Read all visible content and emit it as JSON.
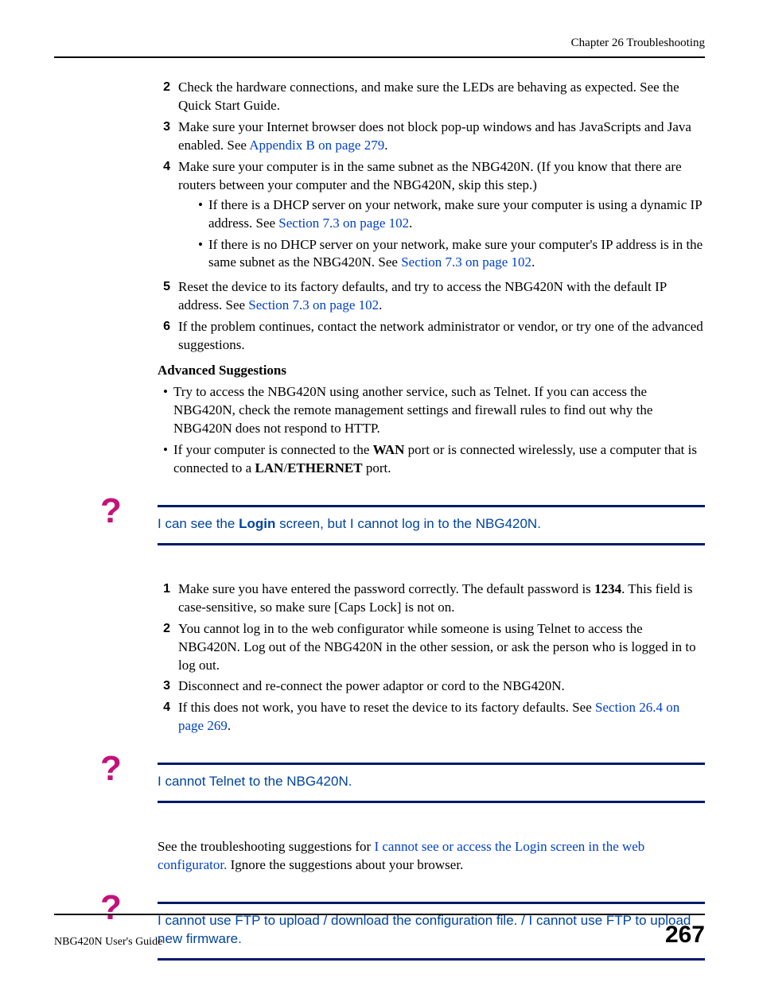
{
  "header": {
    "chapter": "Chapter 26 Troubleshooting"
  },
  "steps1": {
    "s2": "Check the hardware connections, and make sure the LEDs are behaving as expected. See the Quick Start Guide.",
    "s3a": "Make sure your Internet browser does not block pop-up windows and has JavaScripts and Java enabled. See ",
    "s3link": "Appendix B on page 279",
    "s3b": ".",
    "s4": "Make sure your computer is in the same subnet as the NBG420N. (If you know that there are routers between your computer and the NBG420N, skip this step.)",
    "s4_b1a": "If there is a DHCP server on your network, make sure your computer is using a dynamic IP address. See ",
    "s4_b1link": "Section 7.3 on page 102",
    "s4_b1b": ".",
    "s4_b2a": "If there is no DHCP server on your network, make sure your computer's IP address is in the same subnet as the NBG420N. See ",
    "s4_b2link": "Section 7.3 on page 102",
    "s4_b2b": ".",
    "s5a": "Reset the device to its factory defaults, and try to access the NBG420N with the default IP address. See ",
    "s5link": "Section 7.3 on page 102",
    "s5b": ".",
    "s6": "If the problem continues, contact the network administrator or vendor, or try one of the advanced suggestions."
  },
  "adv": {
    "head": "Advanced Suggestions",
    "b1": "Try to access the NBG420N using another service, such as Telnet. If you can access the NBG420N, check the remote management settings and firewall rules to find out why the NBG420N does not respond to HTTP.",
    "b2a": "If your computer is connected to the ",
    "b2_wan": "WAN",
    "b2b": " port or is connected wirelessly, use a computer that is connected to a ",
    "b2_lan": "LAN",
    "b2_slash": "/",
    "b2_eth": "ETHERNET",
    "b2c": " port."
  },
  "q1": {
    "pre": "I can see the ",
    "login": "Login",
    "post": " screen, but I cannot log in to the NBG420N."
  },
  "steps2": {
    "s1a": "Make sure you have entered the password correctly. The default password is ",
    "s1_pw": "1234",
    "s1b": ". This field is case-sensitive, so make sure [Caps Lock] is not on.",
    "s2": "You cannot log in to the web configurator while someone is using Telnet to access the NBG420N. Log out of the NBG420N in the other session, or ask the person who is logged in to log out.",
    "s3": "Disconnect and re-connect the power adaptor or cord to the NBG420N.",
    "s4a": "If this does not work, you have to reset the device to its factory defaults. See ",
    "s4link": "Section 26.4 on page 269",
    "s4b": "."
  },
  "q2": {
    "title": "I cannot Telnet to the NBG420N."
  },
  "para2": {
    "a": "See the troubleshooting suggestions for ",
    "link": "I cannot see or access the Login screen in the web configurator.",
    "b": " Ignore the suggestions about your browser."
  },
  "q3": {
    "title": "I cannot use FTP to upload / download the configuration file. / I cannot use FTP to upload new firmware."
  },
  "footer": {
    "guide": "NBG420N User's Guide",
    "page": "267"
  },
  "colors": {
    "link": "#0040c8",
    "accent": "#c4117a",
    "bar": "#001a66",
    "heading_blue": "#0044a0"
  }
}
